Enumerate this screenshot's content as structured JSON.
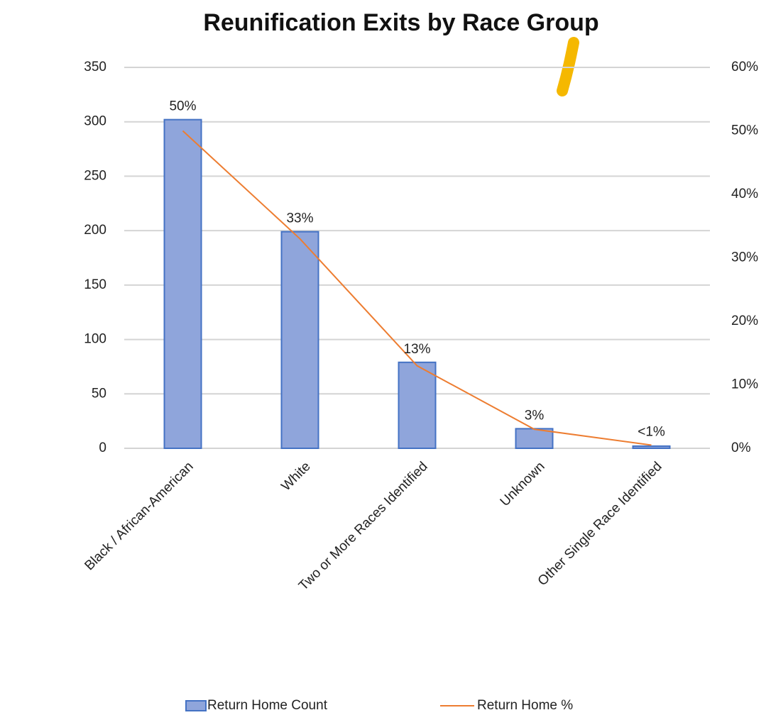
{
  "chart_data": {
    "type": "bar",
    "title": "Reunification Exits by Race Group",
    "categories": [
      "Black / African-American",
      "White",
      "Two or More Races Identified",
      "Unknown",
      "Other Single Race Identified"
    ],
    "series": [
      {
        "name": "Return Home Count",
        "type": "bar",
        "color": "#8fa5db",
        "values": [
          302,
          199,
          79,
          18,
          2
        ]
      },
      {
        "name": "Return Home %",
        "type": "line",
        "axis": "y2",
        "color": "#ed7d31",
        "values": [
          50,
          33,
          13,
          3,
          0.5
        ],
        "value_labels": [
          "50%",
          "33%",
          "13%",
          "3%",
          "<1%"
        ]
      }
    ],
    "ylim": [
      0,
      350
    ],
    "yticks": [
      0,
      50,
      100,
      150,
      200,
      250,
      300,
      350
    ],
    "y2lim": [
      0,
      60
    ],
    "y2ticks": [
      {
        "value": 0,
        "label": "0%"
      },
      {
        "value": 10,
        "label": "10%"
      },
      {
        "value": 20,
        "label": "20%"
      },
      {
        "value": 30,
        "label": "30%"
      },
      {
        "value": 40,
        "label": "40%"
      },
      {
        "value": 50,
        "label": "50%"
      },
      {
        "value": 60,
        "label": "60%"
      }
    ],
    "grid": true,
    "legend": "bottom"
  }
}
